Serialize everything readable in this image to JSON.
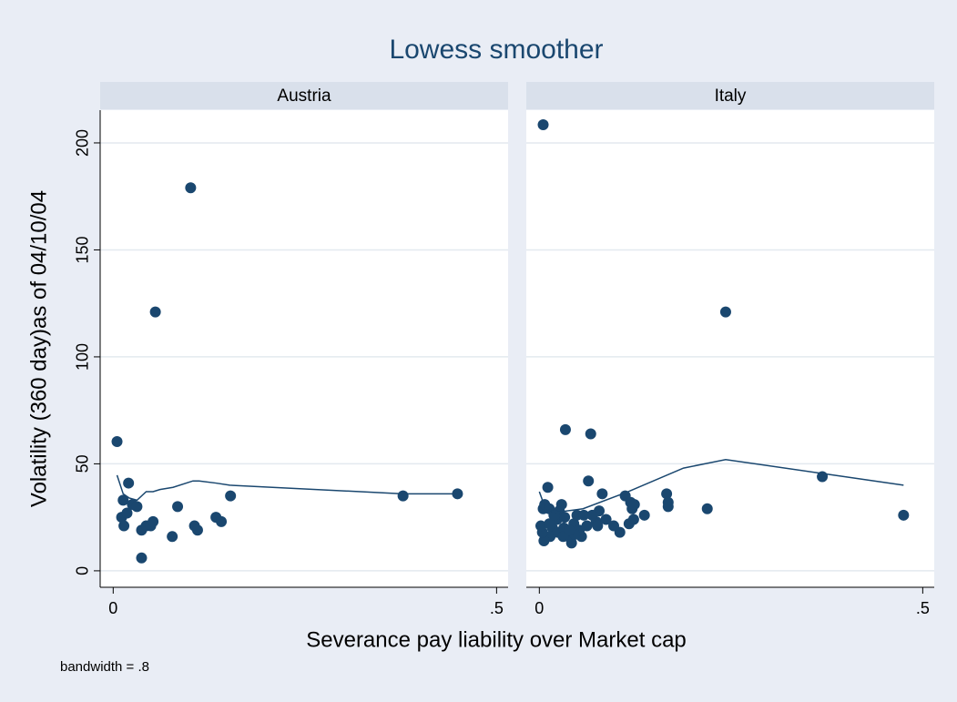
{
  "chart_data": {
    "type": "scatter",
    "title": "Lowess smoother",
    "xlabel": "Severance pay liability over Market cap",
    "ylabel": "Volatility (360 day)as of 04/10/04",
    "note": "bandwidth = .8",
    "color": "#1a476f",
    "grid": true,
    "xlim": [
      -0.017,
      0.515
    ],
    "ylim": [
      -7.7,
      215.3
    ],
    "xticks": [
      0,
      {
        "value": 0.5,
        "label": ".5"
      }
    ],
    "yticks": [
      0,
      50,
      100,
      150,
      200
    ],
    "panels": [
      {
        "name": "Austria",
        "x": [
          0.005,
          0.101,
          0.055,
          0.02,
          0.013,
          0.025,
          0.031,
          0.011,
          0.018,
          0.014,
          0.037,
          0.043,
          0.049,
          0.052,
          0.037,
          0.077,
          0.084,
          0.106,
          0.11,
          0.134,
          0.141,
          0.153,
          0.378,
          0.449
        ],
        "y": [
          60.4,
          179,
          121,
          41,
          33,
          31,
          30,
          25,
          27,
          21,
          19,
          21,
          21,
          23,
          6,
          16,
          30,
          21,
          19,
          25,
          23,
          35,
          35,
          36
        ],
        "smooth": {
          "x": [
            0.005,
            0.013,
            0.021,
            0.031,
            0.043,
            0.052,
            0.061,
            0.078,
            0.104,
            0.112,
            0.134,
            0.152,
            0.378,
            0.449
          ],
          "y": [
            44.7,
            36,
            34,
            33,
            37,
            37,
            38,
            39,
            42,
            42,
            41,
            40,
            36,
            36
          ]
        }
      },
      {
        "name": "Italy",
        "x": [
          0.005,
          0.243,
          0.034,
          0.067,
          0.064,
          0.011,
          0.369,
          0.475,
          0.219,
          0.166,
          0.168,
          0.168,
          0.137,
          0.121,
          0.112,
          0.119,
          0.124,
          0.123,
          0.117,
          0.105,
          0.097,
          0.082,
          0.078,
          0.074,
          0.076,
          0.069,
          0.055,
          0.042,
          0.038,
          0.029,
          0.026,
          0.023,
          0.017,
          0.014,
          0.006,
          0.004,
          0.002,
          0.005,
          0.007,
          0.013,
          0.019,
          0.024,
          0.032,
          0.045,
          0.049,
          0.058,
          0.062,
          0.052,
          0.046,
          0.031,
          0.013,
          0.02,
          0.033,
          0.039,
          0.087
        ],
        "y": [
          208.5,
          121,
          66,
          64,
          42,
          39,
          44,
          26,
          29,
          36,
          32,
          30,
          26,
          29,
          35,
          32,
          31,
          24,
          22,
          18,
          21,
          36,
          28,
          23,
          21,
          26,
          16,
          13,
          16,
          31,
          28,
          24,
          20,
          16,
          14,
          18,
          21,
          29,
          31,
          29,
          26,
          18,
          20,
          22,
          26,
          26,
          21,
          19,
          17,
          16,
          22,
          26,
          25,
          19,
          24
        ],
        "smooth": {
          "x": [
            0.0,
            0.006,
            0.015,
            0.057,
            0.116,
            0.188,
            0.243,
            0.369,
            0.475
          ],
          "y": [
            37,
            31,
            27,
            29,
            37,
            48,
            52,
            45.5,
            40
          ]
        }
      }
    ]
  }
}
